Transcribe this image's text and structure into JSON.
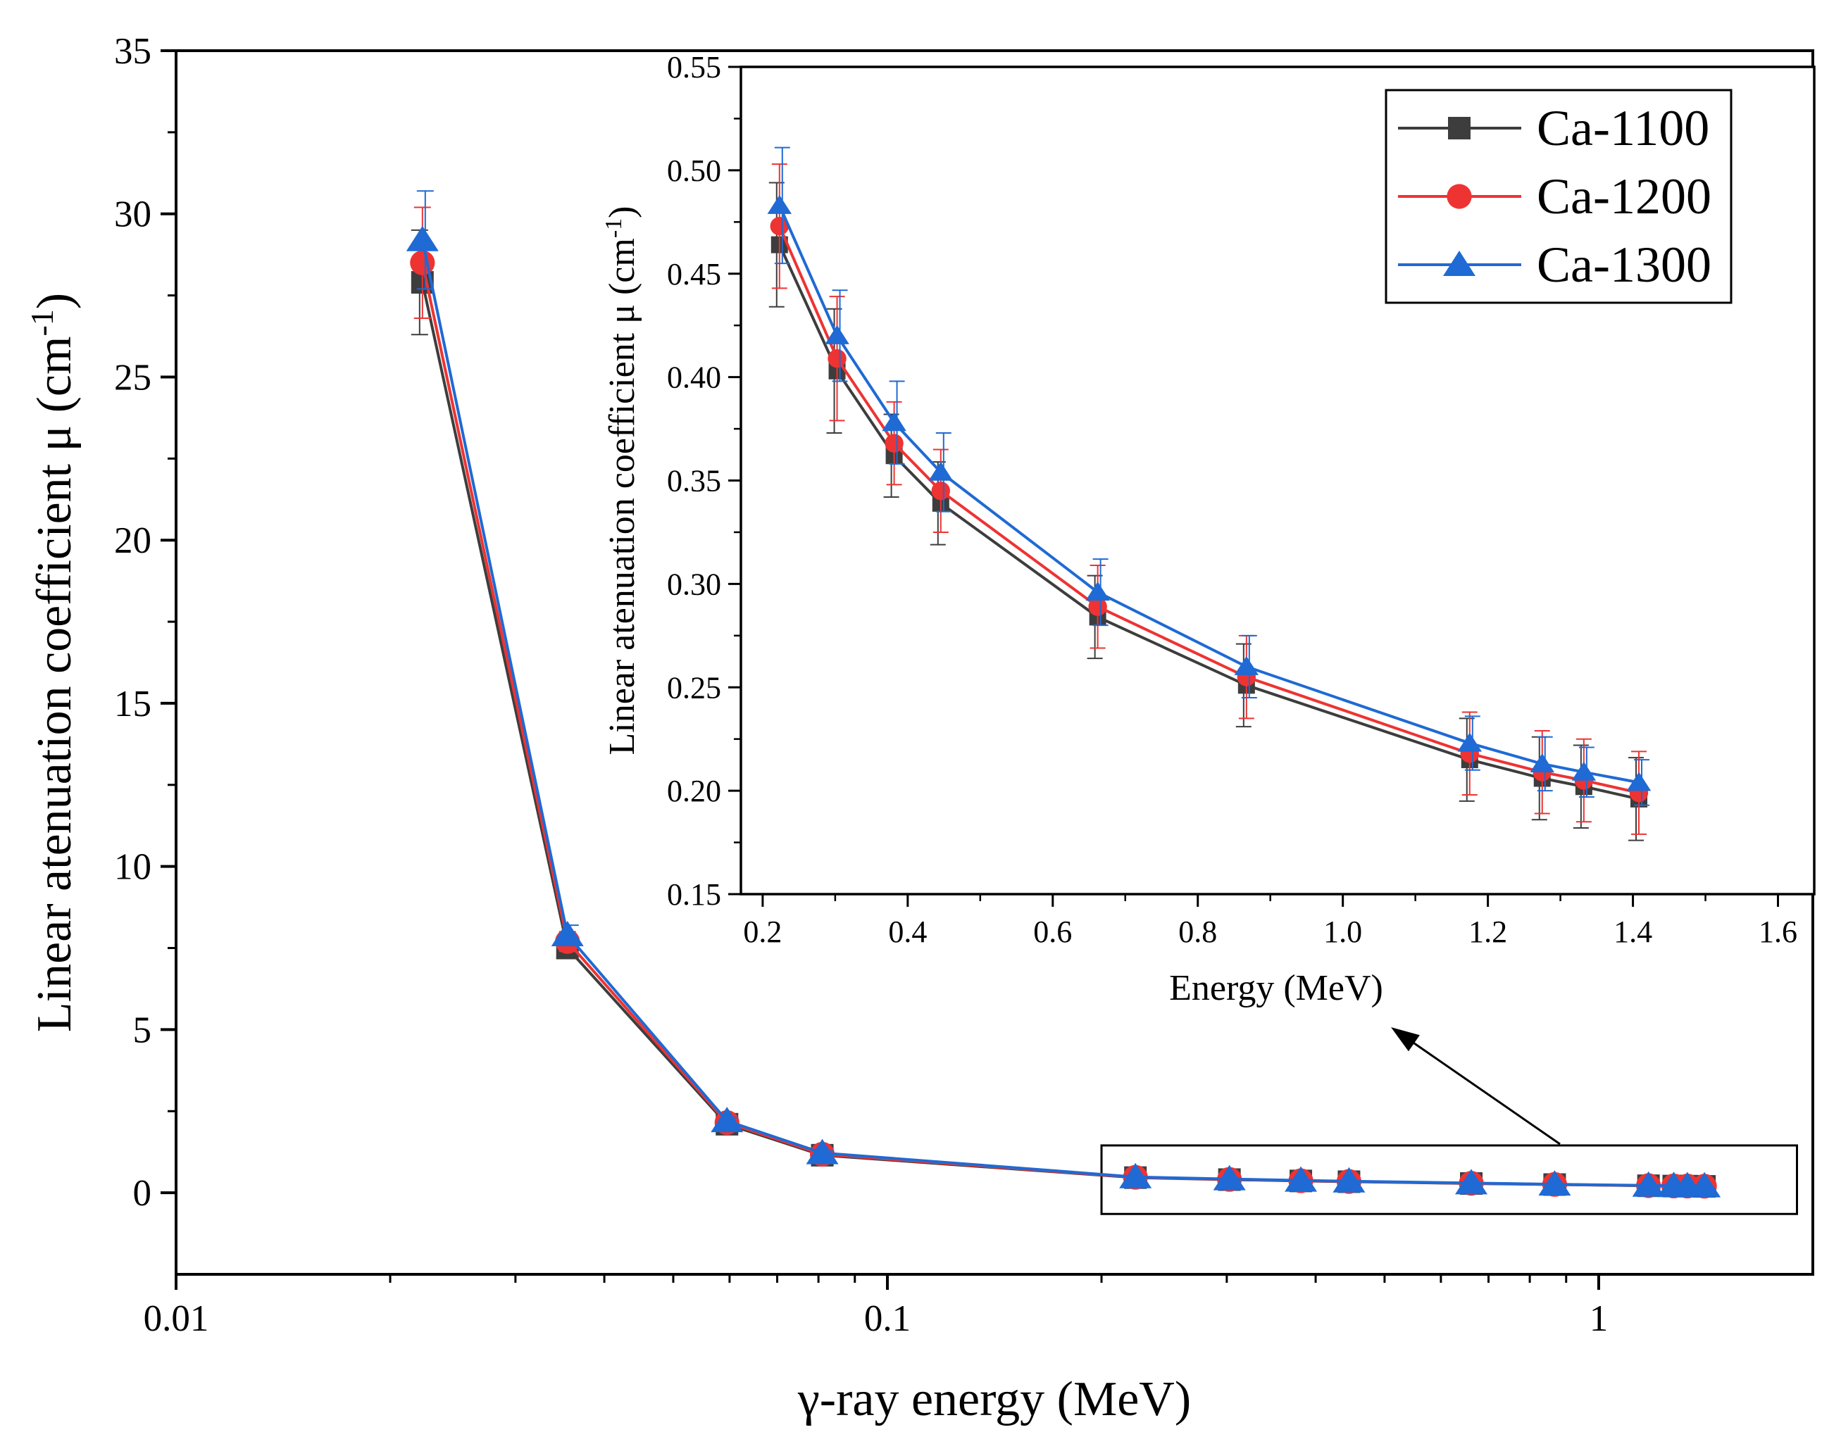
{
  "chart_data": [
    {
      "id": "main",
      "type": "line",
      "xscale": "log",
      "xlabel": "γ-ray energy (MeV)",
      "ylabel_main": "Linear atenuation coefficient μ (cm",
      "ylabel_sup": "-1",
      "ylabel_close": ")",
      "xlim": [
        0.01,
        2
      ],
      "ylim": [
        -2.5,
        35
      ],
      "xticks": [
        0.01,
        0.1,
        1
      ],
      "xtick_labels": [
        "0.01",
        "0.1",
        "1"
      ],
      "yticks": [
        0,
        5,
        10,
        15,
        20,
        25,
        30,
        35
      ],
      "ytick_labels": [
        "0",
        "5",
        "10",
        "15",
        "20",
        "25",
        "30",
        "35"
      ],
      "x": [
        0.0222,
        0.0355,
        0.0595,
        0.081,
        0.2232,
        0.3026,
        0.3813,
        0.4456,
        0.662,
        0.8671,
        1.1749,
        1.2749,
        1.3323,
        1.4082
      ],
      "series": [
        {
          "name": "Ca-1100",
          "color": "#3d3d3d",
          "marker": "square",
          "values": [
            27.9,
            7.5,
            2.1,
            1.15,
            0.464,
            0.403,
            0.362,
            0.339,
            0.284,
            0.251,
            0.215,
            0.206,
            0.202,
            0.196
          ],
          "errors": [
            1.6,
            0.3,
            0.1,
            0.06,
            0.03,
            0.03,
            0.02,
            0.02,
            0.02,
            0.02,
            0.02,
            0.02,
            0.02,
            0.02
          ]
        },
        {
          "name": "Ca-1200",
          "color": "#ee3333",
          "marker": "circle",
          "values": [
            28.5,
            7.7,
            2.15,
            1.18,
            0.473,
            0.409,
            0.368,
            0.345,
            0.289,
            0.255,
            0.218,
            0.209,
            0.205,
            0.199
          ],
          "errors": [
            1.7,
            0.3,
            0.1,
            0.06,
            0.03,
            0.03,
            0.02,
            0.02,
            0.02,
            0.02,
            0.02,
            0.02,
            0.02,
            0.02
          ]
        },
        {
          "name": "Ca-1300",
          "color": "#1f6ad4",
          "marker": "triangle",
          "values": [
            29.2,
            7.9,
            2.2,
            1.22,
            0.483,
            0.42,
            0.378,
            0.354,
            0.296,
            0.26,
            0.223,
            0.213,
            0.209,
            0.204
          ],
          "errors": [
            1.5,
            0.3,
            0.1,
            0.06,
            0.028,
            0.022,
            0.02,
            0.019,
            0.016,
            0.015,
            0.013,
            0.013,
            0.012,
            0.011
          ]
        }
      ],
      "annotation": "arrow from boxed high-energy region to inset"
    },
    {
      "id": "inset",
      "type": "line",
      "xlabel": "Energy (MeV)",
      "ylabel_main": "Linear atenuation coefficient μ (cm",
      "ylabel_sup": "-1",
      "ylabel_close": ")",
      "xlim": [
        0.17,
        1.65
      ],
      "ylim": [
        0.15,
        0.55
      ],
      "xticks": [
        0.2,
        0.4,
        0.6,
        0.8,
        1.0,
        1.2,
        1.4,
        1.6
      ],
      "xtick_labels": [
        "0.2",
        "0.4",
        "0.6",
        "0.8",
        "1.0",
        "1.2",
        "1.4",
        "1.6"
      ],
      "yticks": [
        0.15,
        0.2,
        0.25,
        0.3,
        0.35,
        0.4,
        0.45,
        0.5,
        0.55
      ],
      "ytick_labels": [
        "0.15",
        "0.20",
        "0.25",
        "0.30",
        "0.35",
        "0.40",
        "0.45",
        "0.50",
        "0.55"
      ],
      "x": [
        0.2232,
        0.3026,
        0.3813,
        0.4456,
        0.662,
        0.8671,
        1.1749,
        1.2749,
        1.3323,
        1.4082
      ],
      "legend": {
        "position": "top-right",
        "entries": [
          "Ca-1100",
          "Ca-1200",
          "Ca-1300"
        ]
      }
    }
  ]
}
